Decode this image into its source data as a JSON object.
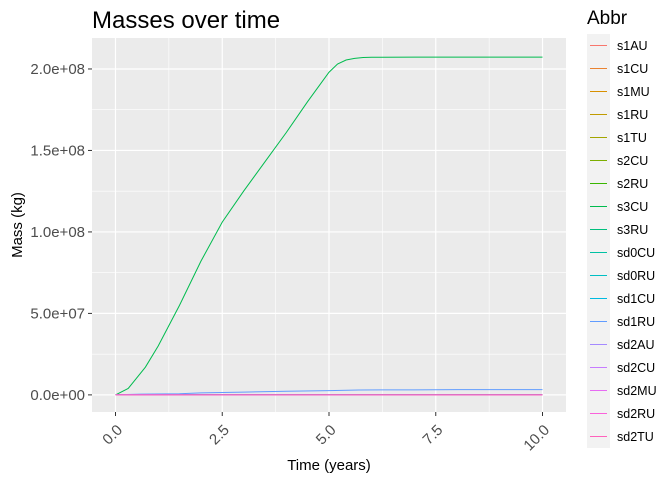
{
  "chart_data": {
    "type": "line",
    "title": "Masses over time",
    "xlabel": "Time (years)",
    "ylabel": "Mass (kg)",
    "xlim": [
      -0.55,
      10.55
    ],
    "ylim": [
      -10500000,
      219000000
    ],
    "x_ticks": [
      0,
      2.5,
      5,
      7.5,
      10
    ],
    "x_tick_labels": [
      "0.0",
      "2.5",
      "5.0",
      "7.5",
      "10.0"
    ],
    "y_ticks": [
      0,
      50000000,
      100000000,
      150000000,
      200000000
    ],
    "y_tick_labels": [
      "0.0e+00",
      "5.0e+07",
      "1.0e+08",
      "1.5e+08",
      "2.0e+08"
    ],
    "x_tick_rotation_deg": 45,
    "grid": true,
    "panel_background": "#ebebeb",
    "legend_title": "Abbr",
    "legend_position": "right",
    "series": [
      {
        "name": "s1AU",
        "color": "#F8766D",
        "x": [
          0,
          10
        ],
        "y": [
          0,
          0
        ]
      },
      {
        "name": "s1CU",
        "color": "#EA8331",
        "x": [
          0,
          10
        ],
        "y": [
          0,
          0
        ]
      },
      {
        "name": "s1MU",
        "color": "#D89000",
        "x": [
          0,
          10
        ],
        "y": [
          0,
          0
        ]
      },
      {
        "name": "s1RU",
        "color": "#C09B00",
        "x": [
          0,
          10
        ],
        "y": [
          0,
          0
        ]
      },
      {
        "name": "s1TU",
        "color": "#A3A500",
        "x": [
          0,
          10
        ],
        "y": [
          0,
          0
        ]
      },
      {
        "name": "s2CU",
        "color": "#7CAE00",
        "x": [
          0,
          10
        ],
        "y": [
          0,
          0
        ]
      },
      {
        "name": "s2RU",
        "color": "#39B600",
        "x": [
          0,
          10
        ],
        "y": [
          0,
          0
        ]
      },
      {
        "name": "s3CU",
        "color": "#00BB4E",
        "x": [
          0,
          0.3,
          0.7,
          1.0,
          1.5,
          2.0,
          2.5,
          3.0,
          3.5,
          4.0,
          4.5,
          5.0,
          5.2,
          5.4,
          5.6,
          5.8,
          6.0,
          7.0,
          8.0,
          10.0
        ],
        "y": [
          0,
          4000000,
          17000000,
          30000000,
          55000000,
          82000000,
          106000000,
          125000000,
          143000000,
          161000000,
          180000000,
          198000000,
          203000000,
          205500000,
          206500000,
          207000000,
          207200000,
          207300000,
          207300000,
          207300000
        ]
      },
      {
        "name": "s3RU",
        "color": "#00BF7D",
        "x": [
          0,
          10
        ],
        "y": [
          0,
          0
        ]
      },
      {
        "name": "sd0CU",
        "color": "#00C1A3",
        "x": [
          0,
          10
        ],
        "y": [
          0,
          0
        ]
      },
      {
        "name": "sd0RU",
        "color": "#00BFC4",
        "x": [
          0,
          10
        ],
        "y": [
          0,
          0
        ]
      },
      {
        "name": "sd1CU",
        "color": "#00BAE0",
        "x": [
          0,
          10
        ],
        "y": [
          0,
          0
        ]
      },
      {
        "name": "sd1RU",
        "color": "#619CFF",
        "x": [
          0,
          0.6,
          1.5,
          2.0,
          3.0,
          4.0,
          5.0,
          5.7,
          7.0,
          8.0,
          10.0
        ],
        "y": [
          0,
          500000,
          700000,
          1200000,
          1700000,
          2200000,
          2600000,
          3000000,
          3100000,
          3200000,
          3200000
        ]
      },
      {
        "name": "sd2AU",
        "color": "#A58AFF",
        "x": [
          0,
          10
        ],
        "y": [
          0,
          0
        ]
      },
      {
        "name": "sd2CU",
        "color": "#C77CFF",
        "x": [
          0,
          10
        ],
        "y": [
          0,
          0
        ]
      },
      {
        "name": "sd2MU",
        "color": "#E76BF3",
        "x": [
          0,
          10
        ],
        "y": [
          0,
          0
        ]
      },
      {
        "name": "sd2RU",
        "color": "#FA62DB",
        "x": [
          0,
          10
        ],
        "y": [
          0,
          0
        ]
      },
      {
        "name": "sd2TU",
        "color": "#FF62BC",
        "x": [
          0,
          10
        ],
        "y": [
          0,
          0
        ]
      }
    ]
  }
}
